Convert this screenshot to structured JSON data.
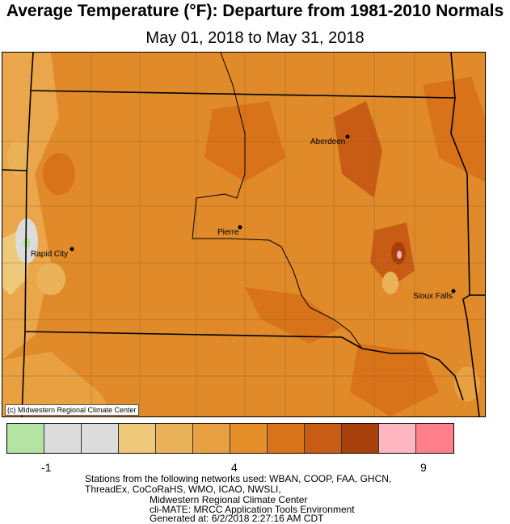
{
  "title": "Average Temperature (°F): Departure from 1981-2010 Normals",
  "subtitle": "May 01, 2018 to May 31, 2018",
  "credit": "(c) Midwestern Regional Climate Center",
  "cities": [
    {
      "name": "Aberdeen"
    },
    {
      "name": "Pierre"
    },
    {
      "name": "Rapid City"
    },
    {
      "name": "Sioux Falls"
    }
  ],
  "legend": {
    "colors": [
      "#b5e3a4",
      "#dcdcdc",
      "#dcdcdc",
      "#efc97a",
      "#eab35a",
      "#e8a040",
      "#e58f2a",
      "#d9731a",
      "#c85c14",
      "#a8400a",
      "#ffb6c1",
      "#ff7f8a"
    ],
    "tick_labels": [
      "-1",
      "4",
      "9"
    ]
  },
  "footer": {
    "line1": "Stations from the following networks used: WBAN, COOP, FAA, GHCN,",
    "line2": "ThreadEx, CoCoRaHS, WMO, ICAO, NWSLI,",
    "line3": "Midwestern Regional Climate Center",
    "line4": "cli-MATE: MRCC Application Tools Environment",
    "line5": "Generated at: 6/2/2018 2:27:16 AM CDT"
  }
}
